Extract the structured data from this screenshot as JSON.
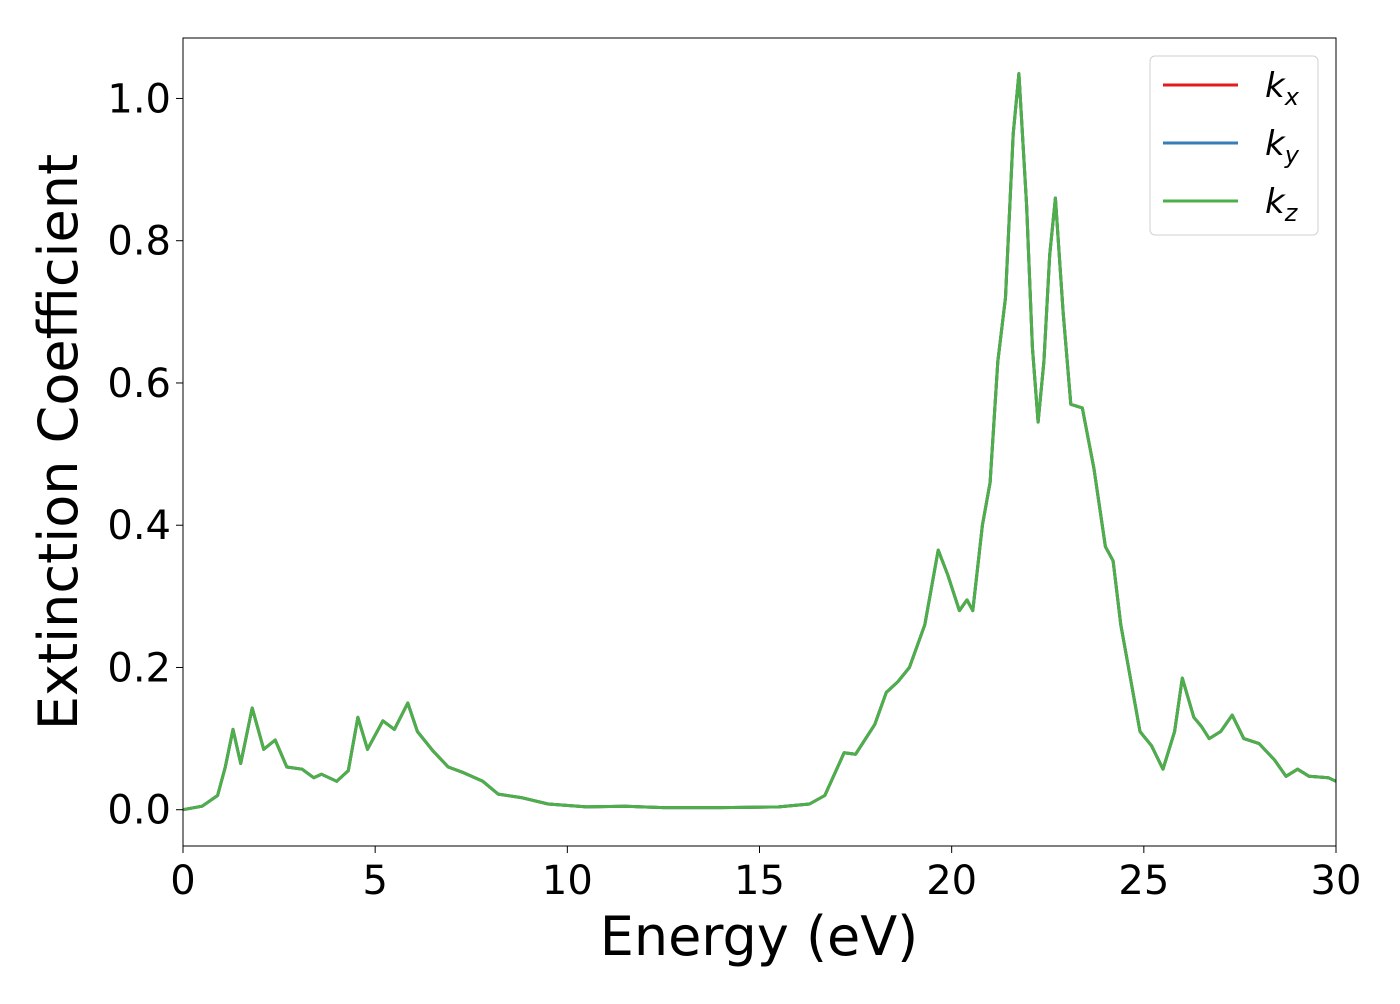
{
  "chart_data": {
    "type": "line",
    "xlabel": "Energy (eV)",
    "ylabel": "Extinction Coefficient",
    "xlim": [
      0,
      30
    ],
    "ylim": [
      -0.051,
      1.085
    ],
    "xticks": [
      0,
      5,
      10,
      15,
      20,
      25,
      30
    ],
    "yticks": [
      {
        "value": 0,
        "label": "0.0"
      },
      0.2,
      0.4,
      0.6,
      0.8,
      {
        "value": 1,
        "label": "1.0"
      }
    ],
    "legend": "upper right",
    "x": [
      0,
      0.5,
      0.9,
      1.1,
      1.3,
      1.5,
      1.8,
      2.1,
      2.4,
      2.7,
      3.1,
      3.4,
      3.6,
      4.0,
      4.3,
      4.55,
      4.8,
      5.2,
      5.5,
      5.85,
      6.1,
      6.5,
      6.9,
      7.3,
      7.8,
      8.2,
      8.8,
      9.5,
      10.5,
      11.5,
      12.5,
      14,
      15.5,
      16.3,
      16.7,
      17.2,
      17.5,
      18.0,
      18.3,
      18.6,
      18.9,
      19.3,
      19.65,
      19.9,
      20.2,
      20.4,
      20.55,
      20.8,
      21.0,
      21.2,
      21.4,
      21.6,
      21.75,
      21.95,
      22.1,
      22.25,
      22.4,
      22.55,
      22.7,
      22.9,
      23.1,
      23.4,
      23.7,
      24.0,
      24.2,
      24.4,
      24.6,
      24.9,
      25.2,
      25.5,
      25.8,
      26.0,
      26.3,
      26.5,
      26.7,
      27.0,
      27.3,
      27.6,
      28.0,
      28.4,
      28.7,
      29.0,
      29.3,
      29.8,
      30.0
    ],
    "series": [
      {
        "name": "k_x",
        "color": "#e41a1c",
        "values": [
          0,
          0.005,
          0.02,
          0.06,
          0.113,
          0.065,
          0.143,
          0.085,
          0.098,
          0.06,
          0.057,
          0.045,
          0.05,
          0.04,
          0.055,
          0.13,
          0.085,
          0.125,
          0.113,
          0.15,
          0.11,
          0.083,
          0.06,
          0.052,
          0.04,
          0.022,
          0.017,
          0.008,
          0.004,
          0.005,
          0.003,
          0.003,
          0.004,
          0.008,
          0.02,
          0.08,
          0.078,
          0.12,
          0.165,
          0.18,
          0.2,
          0.26,
          0.365,
          0.33,
          0.28,
          0.295,
          0.28,
          0.4,
          0.46,
          0.63,
          0.72,
          0.95,
          1.035,
          0.85,
          0.65,
          0.545,
          0.63,
          0.78,
          0.86,
          0.7,
          0.57,
          0.565,
          0.48,
          0.37,
          0.35,
          0.26,
          0.2,
          0.11,
          0.09,
          0.057,
          0.11,
          0.185,
          0.13,
          0.117,
          0.1,
          0.11,
          0.133,
          0.1,
          0.093,
          0.07,
          0.047,
          0.057,
          0.047,
          0.045,
          0.04
        ]
      },
      {
        "name": "k_y",
        "color": "#377eb8",
        "values": [
          0,
          0.005,
          0.02,
          0.06,
          0.113,
          0.065,
          0.143,
          0.085,
          0.098,
          0.06,
          0.057,
          0.045,
          0.05,
          0.04,
          0.055,
          0.13,
          0.085,
          0.125,
          0.113,
          0.15,
          0.11,
          0.083,
          0.06,
          0.052,
          0.04,
          0.022,
          0.017,
          0.008,
          0.004,
          0.005,
          0.003,
          0.003,
          0.004,
          0.008,
          0.02,
          0.08,
          0.078,
          0.12,
          0.165,
          0.18,
          0.2,
          0.26,
          0.365,
          0.33,
          0.28,
          0.295,
          0.28,
          0.4,
          0.46,
          0.63,
          0.72,
          0.95,
          1.035,
          0.85,
          0.65,
          0.545,
          0.63,
          0.78,
          0.86,
          0.7,
          0.57,
          0.565,
          0.48,
          0.37,
          0.35,
          0.26,
          0.2,
          0.11,
          0.09,
          0.057,
          0.11,
          0.185,
          0.13,
          0.117,
          0.1,
          0.11,
          0.133,
          0.1,
          0.093,
          0.07,
          0.047,
          0.057,
          0.047,
          0.045,
          0.04
        ]
      },
      {
        "name": "k_z",
        "color": "#4daf4a",
        "values": [
          0,
          0.005,
          0.02,
          0.06,
          0.113,
          0.065,
          0.143,
          0.085,
          0.098,
          0.06,
          0.057,
          0.045,
          0.05,
          0.04,
          0.055,
          0.13,
          0.085,
          0.125,
          0.113,
          0.15,
          0.11,
          0.083,
          0.06,
          0.052,
          0.04,
          0.022,
          0.017,
          0.008,
          0.004,
          0.005,
          0.003,
          0.003,
          0.004,
          0.008,
          0.02,
          0.08,
          0.078,
          0.12,
          0.165,
          0.18,
          0.2,
          0.26,
          0.365,
          0.33,
          0.28,
          0.295,
          0.28,
          0.4,
          0.46,
          0.63,
          0.72,
          0.95,
          1.035,
          0.85,
          0.65,
          0.545,
          0.63,
          0.78,
          0.86,
          0.7,
          0.57,
          0.565,
          0.48,
          0.37,
          0.35,
          0.26,
          0.2,
          0.11,
          0.09,
          0.057,
          0.11,
          0.185,
          0.13,
          0.117,
          0.1,
          0.11,
          0.133,
          0.1,
          0.093,
          0.07,
          0.047,
          0.057,
          0.047,
          0.045,
          0.04
        ]
      }
    ]
  }
}
